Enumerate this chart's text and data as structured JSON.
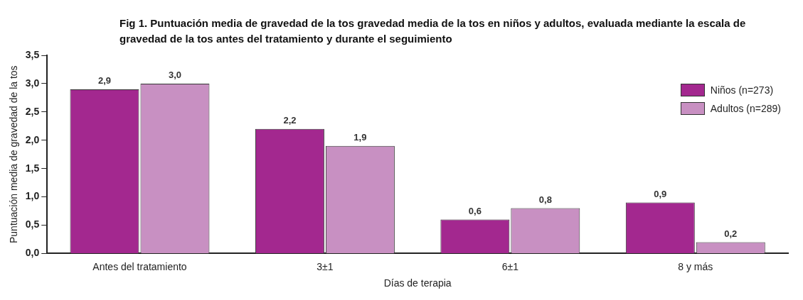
{
  "chart_data": {
    "type": "bar",
    "title": "Fig 1. Puntuación media de gravedad de la tos gravedad media de la tos en niños y adultos, evaluada mediante la escala de gravedad de la tos antes del tratamiento y durante el seguimiento",
    "xlabel": "Días de terapia",
    "ylabel": "Puntuación media de gravedad de la tos",
    "categories": [
      "Antes del tratamiento",
      "3±1",
      "6±1",
      "8 y más"
    ],
    "series": [
      {
        "name": "Niños (n=273)",
        "color": "#a3288f",
        "values": [
          2.9,
          2.2,
          0.6,
          0.9
        ],
        "value_labels": [
          "2,9",
          "2,2",
          "0,6",
          "0,9"
        ]
      },
      {
        "name": "Adultos (n=289)",
        "color": "#c890c2",
        "values": [
          3.0,
          1.9,
          0.8,
          0.2
        ],
        "value_labels": [
          "3,0",
          "1,9",
          "0,8",
          "0,2"
        ]
      }
    ],
    "ylim": [
      0,
      3.5
    ],
    "yticks": [
      {
        "value": 0,
        "label": "0,0"
      },
      {
        "value": 0.5,
        "label": "0,5"
      },
      {
        "value": 1,
        "label": "1,0"
      },
      {
        "value": 1.5,
        "label": "1,5"
      },
      {
        "value": 2,
        "label": "2,0"
      },
      {
        "value": 2.5,
        "label": "2,5"
      },
      {
        "value": 3,
        "label": "3,0"
      },
      {
        "value": 3.5,
        "label": "3,5"
      }
    ],
    "legend": "top right"
  }
}
